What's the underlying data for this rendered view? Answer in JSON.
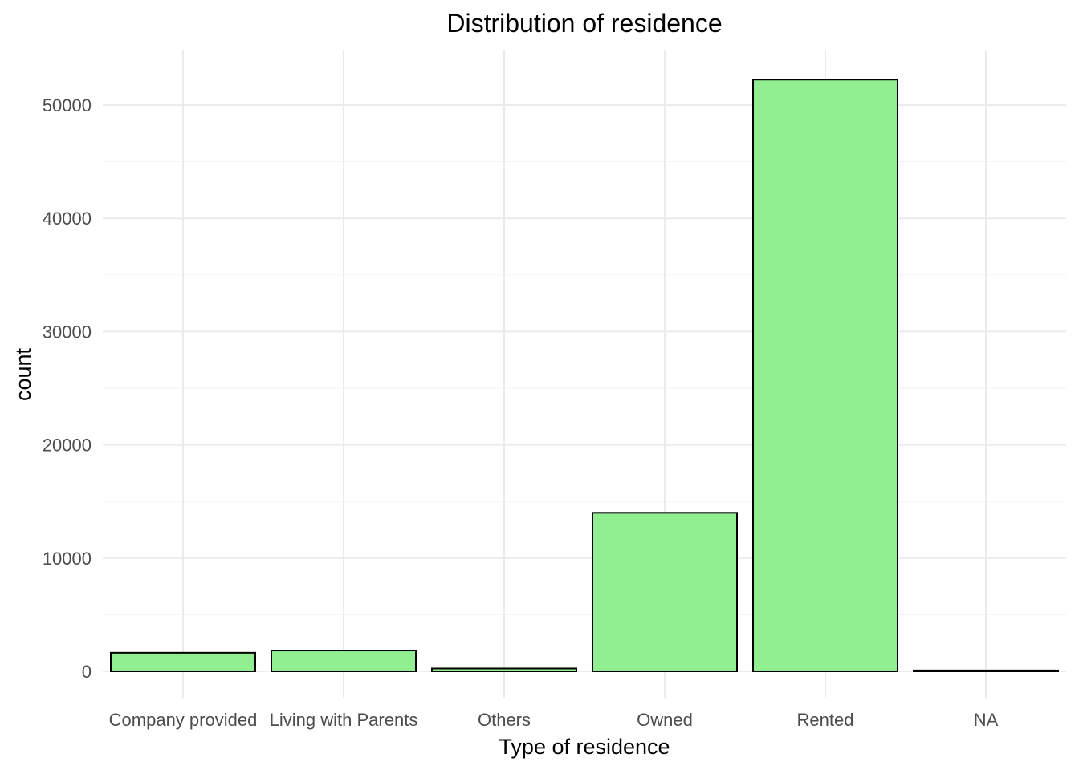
{
  "chart_data": {
    "type": "bar",
    "title": "Distribution of residence",
    "xlabel": "Type of residence",
    "ylabel": "count",
    "categories": [
      "Company provided",
      "Living with Parents",
      "Others",
      "Owned",
      "Rented",
      "NA"
    ],
    "values": [
      1640,
      1840,
      250,
      14000,
      52250,
      80
    ],
    "yticks": [
      0,
      10000,
      20000,
      30000,
      40000,
      50000
    ],
    "ylim": [
      0,
      54900
    ],
    "grid": true,
    "legend": "none",
    "colors": {
      "bar_fill": "#90EE90",
      "bar_stroke": "#000000",
      "grid": "#EBEBEB",
      "text": "#000000",
      "tick_text": "#4D4D4D"
    }
  }
}
